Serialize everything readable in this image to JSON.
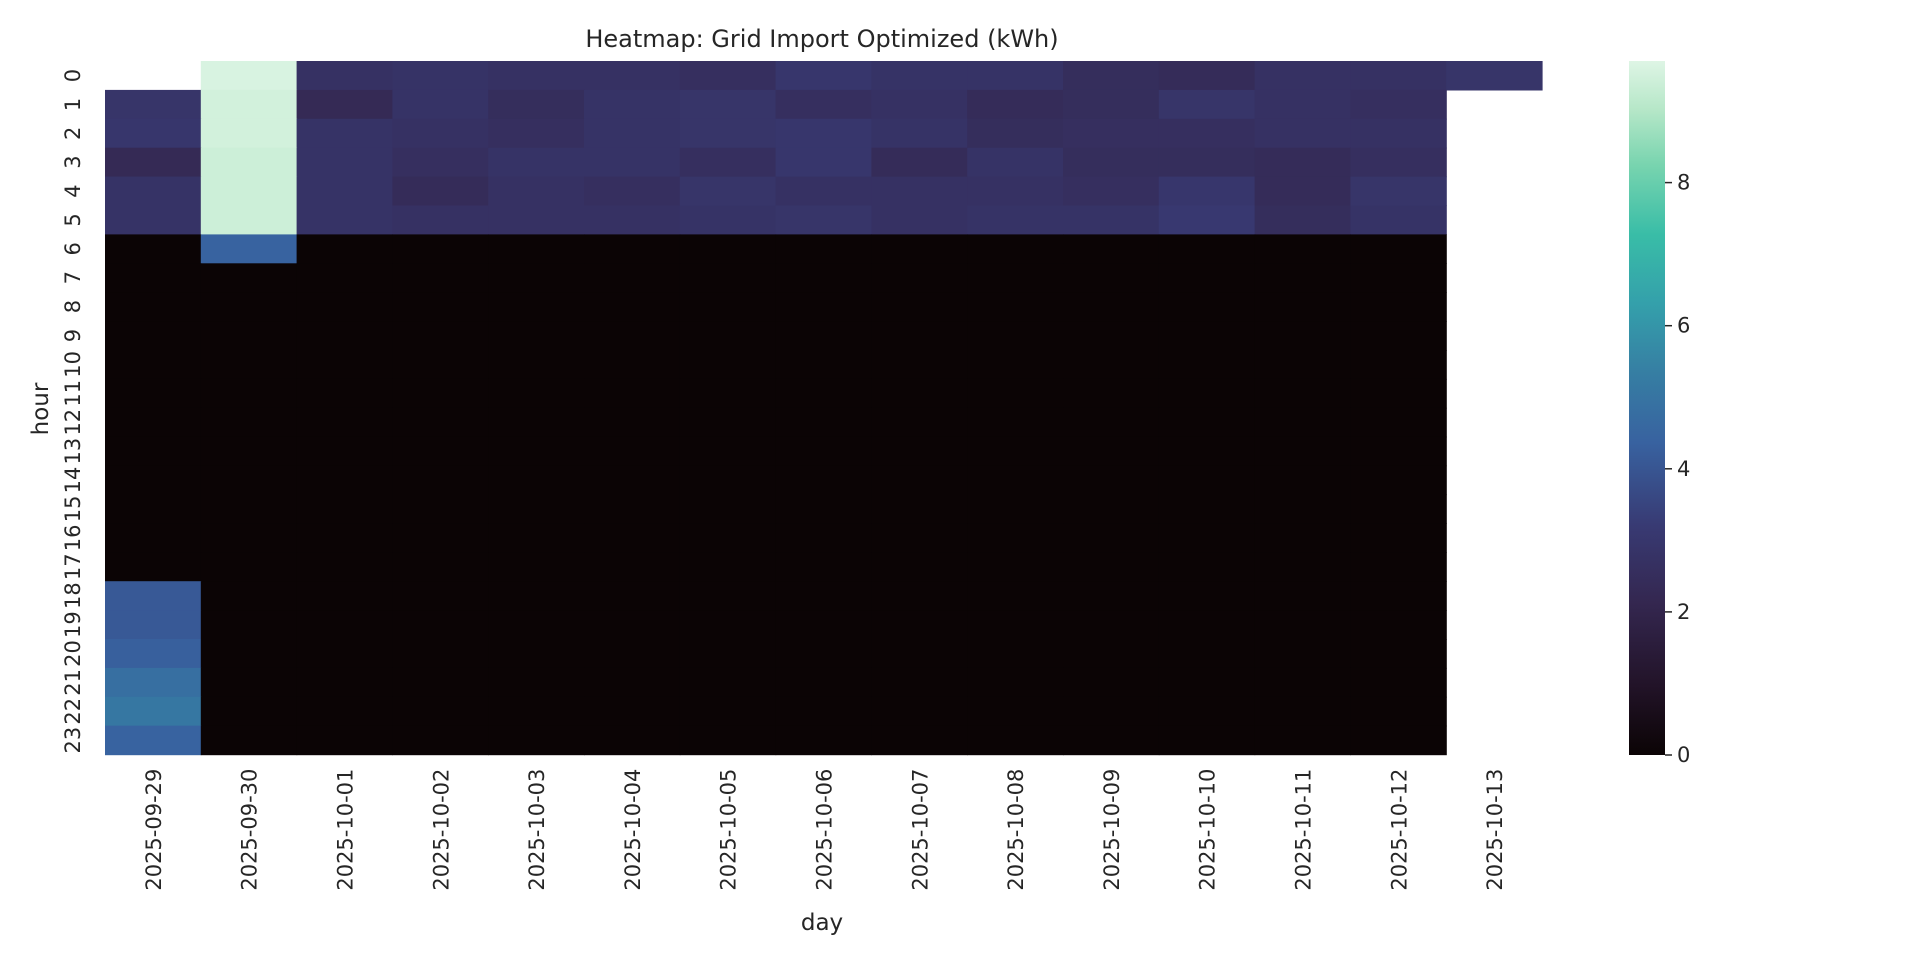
{
  "chart_data": {
    "type": "heatmap",
    "title": "Heatmap: Grid Import Optimized (kWh)",
    "xlabel": "day",
    "ylabel": "hour",
    "x_categories": [
      "2025-09-29",
      "2025-09-30",
      "2025-10-01",
      "2025-10-02",
      "2025-10-03",
      "2025-10-04",
      "2025-10-05",
      "2025-10-06",
      "2025-10-07",
      "2025-10-08",
      "2025-10-09",
      "2025-10-10",
      "2025-10-11",
      "2025-10-12",
      "2025-10-13"
    ],
    "y_categories": [
      "0",
      "1",
      "2",
      "3",
      "4",
      "5",
      "6",
      "7",
      "8",
      "9",
      "10",
      "11",
      "12",
      "13",
      "14",
      "15",
      "16",
      "17",
      "18",
      "19",
      "20",
      "21",
      "22",
      "23"
    ],
    "colorbar": {
      "min": 0,
      "max": 9.7,
      "ticks": [
        0,
        2,
        4,
        6,
        8
      ],
      "colormap": "mako"
    },
    "values": [
      [
        null,
        9.6,
        2.7,
        2.8,
        2.7,
        2.7,
        2.6,
        3.0,
        2.8,
        2.8,
        2.5,
        2.4,
        2.7,
        2.7,
        2.9
      ],
      [
        2.9,
        9.5,
        2.3,
        2.8,
        2.5,
        2.8,
        2.9,
        2.6,
        2.7,
        2.4,
        2.5,
        2.9,
        2.7,
        2.6,
        null
      ],
      [
        3.0,
        9.5,
        2.8,
        2.7,
        2.6,
        2.8,
        2.9,
        3.0,
        2.8,
        2.5,
        2.6,
        2.6,
        2.7,
        2.7,
        null
      ],
      [
        2.3,
        9.4,
        2.8,
        2.6,
        2.8,
        2.8,
        2.6,
        3.0,
        2.4,
        2.8,
        2.5,
        2.5,
        2.4,
        2.6,
        null
      ],
      [
        2.8,
        9.4,
        2.8,
        2.4,
        2.7,
        2.6,
        2.9,
        2.7,
        2.7,
        2.7,
        2.6,
        3.0,
        2.4,
        2.9,
        null
      ],
      [
        2.8,
        9.4,
        2.8,
        2.7,
        2.7,
        2.7,
        2.8,
        2.9,
        2.7,
        2.8,
        2.8,
        3.1,
        2.5,
        2.8,
        null
      ],
      [
        0,
        4.4,
        0,
        0,
        0,
        0,
        0,
        0,
        0,
        0,
        0,
        0,
        0,
        0,
        null
      ],
      [
        0,
        0,
        0,
        0,
        0,
        0,
        0,
        0,
        0,
        0,
        0,
        0,
        0,
        0,
        null
      ],
      [
        0,
        0,
        0,
        0,
        0,
        0,
        0,
        0,
        0,
        0,
        0,
        0,
        0,
        0,
        null
      ],
      [
        0,
        0,
        0,
        0,
        0,
        0,
        0,
        0,
        0,
        0,
        0,
        0,
        0,
        0,
        null
      ],
      [
        0,
        0,
        0,
        0,
        0,
        0,
        0,
        0,
        0,
        0,
        0,
        0,
        0,
        0,
        null
      ],
      [
        0,
        0,
        0,
        0,
        0,
        0,
        0,
        0,
        0,
        0,
        0,
        0,
        0,
        0,
        null
      ],
      [
        0,
        0,
        0,
        0,
        0,
        0,
        0,
        0,
        0,
        0,
        0,
        0,
        0,
        0,
        null
      ],
      [
        0,
        0,
        0,
        0,
        0,
        0,
        0,
        0,
        0,
        0,
        0,
        0,
        0,
        0,
        null
      ],
      [
        0,
        0,
        0,
        0,
        0,
        0,
        0,
        0,
        0,
        0,
        0,
        0,
        0,
        0,
        null
      ],
      [
        0,
        0,
        0,
        0,
        0,
        0,
        0,
        0,
        0,
        0,
        0,
        0,
        0,
        0,
        null
      ],
      [
        0,
        0,
        0,
        0,
        0,
        0,
        0,
        0,
        0,
        0,
        0,
        0,
        0,
        0,
        null
      ],
      [
        0,
        0,
        0,
        0,
        0,
        0,
        0,
        0,
        0,
        0,
        0,
        0,
        0,
        0,
        null
      ],
      [
        4.1,
        0,
        0,
        0,
        0,
        0,
        0,
        0,
        0,
        0,
        0,
        0,
        0,
        0,
        null
      ],
      [
        4.1,
        0,
        0,
        0,
        0,
        0,
        0,
        0,
        0,
        0,
        0,
        0,
        0,
        0,
        null
      ],
      [
        4.3,
        0,
        0,
        0,
        0,
        0,
        0,
        0,
        0,
        0,
        0,
        0,
        0,
        0,
        null
      ],
      [
        4.8,
        0,
        0,
        0,
        0,
        0,
        0,
        0,
        0,
        0,
        0,
        0,
        0,
        0,
        null
      ],
      [
        5.1,
        0,
        0,
        0,
        0,
        0,
        0,
        0,
        0,
        0,
        0,
        0,
        0,
        0,
        null
      ],
      [
        4.4,
        0,
        0,
        0,
        0,
        0,
        0,
        0,
        0,
        0,
        0,
        0,
        0,
        0,
        null
      ]
    ]
  }
}
